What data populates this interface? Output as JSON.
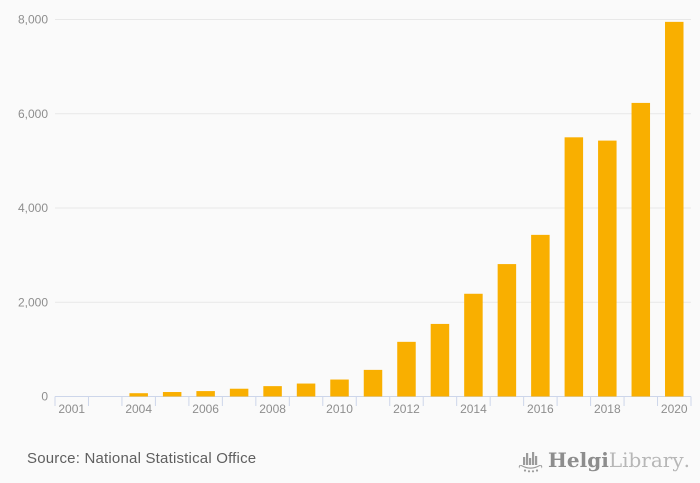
{
  "chart": {
    "chart_data": {
      "type": "bar",
      "title": "",
      "xlabel": "",
      "ylabel": "",
      "legend": "none",
      "grid": true,
      "bar_color": "#F9AF00",
      "background_color": "#FAFAFA",
      "gridline_color": "#E8E8E8",
      "axis_color": "#CDD6EA",
      "label_color": "#8E8E8E",
      "y_axis": {
        "tick_labels": [
          "0",
          "2,000",
          "4,000",
          "6,000",
          "8,000"
        ],
        "tick_values": [
          0,
          2000,
          4000,
          6000,
          8000
        ],
        "ylim": [
          0,
          8000
        ]
      },
      "bars": [
        {
          "tick_label": "2001",
          "value": 0
        },
        {
          "tick_label": "",
          "value": 0
        },
        {
          "tick_label": "2004",
          "value": 70
        },
        {
          "tick_label": "",
          "value": 95
        },
        {
          "tick_label": "2006",
          "value": 115
        },
        {
          "tick_label": "",
          "value": 165
        },
        {
          "tick_label": "2008",
          "value": 220
        },
        {
          "tick_label": "",
          "value": 275
        },
        {
          "tick_label": "2010",
          "value": 360
        },
        {
          "tick_label": "",
          "value": 565
        },
        {
          "tick_label": "2012",
          "value": 1160
        },
        {
          "tick_label": "",
          "value": 1540
        },
        {
          "tick_label": "2014",
          "value": 2180
        },
        {
          "tick_label": "",
          "value": 2810
        },
        {
          "tick_label": "2016",
          "value": 3430
        },
        {
          "tick_label": "",
          "value": 5500
        },
        {
          "tick_label": "2018",
          "value": 5430
        },
        {
          "tick_label": "",
          "value": 6230
        },
        {
          "tick_label": "2020",
          "value": 7950
        }
      ]
    }
  },
  "footer": {
    "source_text": "Source: National Statistical Office",
    "logo": {
      "icon": "viking-ship-bar-chart-icon",
      "brand_primary": "Helgi",
      "brand_secondary": "Library",
      "brand_suffix": "."
    }
  }
}
